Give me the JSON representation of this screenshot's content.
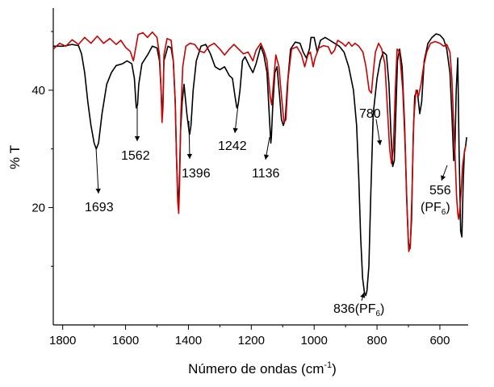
{
  "chart_data": {
    "type": "line",
    "xlabel": "Número de ondas (cm",
    "xlabel_sup": "-1",
    "xlabel_end": ")",
    "ylabel": "% T",
    "xlim": [
      1830,
      510
    ],
    "ylim": [
      0,
      54
    ],
    "x_reversed": true,
    "x_ticks": [
      1800,
      1600,
      1400,
      1200,
      1000,
      800,
      600
    ],
    "y_ticks": [
      20,
      40
    ],
    "grid": false,
    "legend": "none",
    "series": [
      {
        "color": "#000000",
        "points": [
          [
            1830,
            47.5
          ],
          [
            1800,
            47.5
          ],
          [
            1770,
            47.8
          ],
          [
            1750,
            47.6
          ],
          [
            1740,
            46.2
          ],
          [
            1730,
            43
          ],
          [
            1720,
            38
          ],
          [
            1710,
            34
          ],
          [
            1700,
            31
          ],
          [
            1693,
            30
          ],
          [
            1686,
            31
          ],
          [
            1675,
            36
          ],
          [
            1660,
            41
          ],
          [
            1645,
            43
          ],
          [
            1630,
            44.2
          ],
          [
            1610,
            44.5
          ],
          [
            1595,
            45
          ],
          [
            1580,
            44.5
          ],
          [
            1572,
            42
          ],
          [
            1566,
            37
          ],
          [
            1562,
            37.5
          ],
          [
            1558,
            41
          ],
          [
            1548,
            44.5
          ],
          [
            1530,
            46
          ],
          [
            1515,
            47.5
          ],
          [
            1500,
            47.2
          ],
          [
            1492,
            45
          ],
          [
            1487,
            40
          ],
          [
            1484,
            36
          ],
          [
            1481,
            38
          ],
          [
            1478,
            45
          ],
          [
            1465,
            47.5
          ],
          [
            1455,
            47.2
          ],
          [
            1448,
            45
          ],
          [
            1442,
            38
          ],
          [
            1438,
            29
          ],
          [
            1434,
            22
          ],
          [
            1432,
            20.5
          ],
          [
            1429,
            24
          ],
          [
            1425,
            33
          ],
          [
            1420,
            38
          ],
          [
            1414,
            41
          ],
          [
            1405,
            36
          ],
          [
            1398,
            33
          ],
          [
            1396,
            32.5
          ],
          [
            1392,
            34
          ],
          [
            1385,
            40
          ],
          [
            1375,
            45
          ],
          [
            1360,
            47.5
          ],
          [
            1345,
            47.8
          ],
          [
            1330,
            46.2
          ],
          [
            1315,
            44
          ],
          [
            1300,
            43.5
          ],
          [
            1285,
            44
          ],
          [
            1270,
            42.5
          ],
          [
            1260,
            42
          ],
          [
            1252,
            39
          ],
          [
            1246,
            37
          ],
          [
            1242,
            37.5
          ],
          [
            1236,
            40
          ],
          [
            1228,
            45
          ],
          [
            1220,
            45.7
          ],
          [
            1205,
            44
          ],
          [
            1195,
            43
          ],
          [
            1185,
            44.5
          ],
          [
            1170,
            47.5
          ],
          [
            1160,
            46
          ],
          [
            1150,
            43
          ],
          [
            1142,
            35
          ],
          [
            1138,
            31
          ],
          [
            1136,
            32
          ],
          [
            1132,
            37
          ],
          [
            1125,
            43
          ],
          [
            1118,
            44
          ],
          [
            1110,
            39
          ],
          [
            1104,
            35
          ],
          [
            1098,
            34
          ],
          [
            1092,
            35
          ],
          [
            1085,
            41
          ],
          [
            1075,
            47
          ],
          [
            1060,
            48.2
          ],
          [
            1045,
            48
          ],
          [
            1035,
            46.5
          ],
          [
            1025,
            45.5
          ],
          [
            1015,
            47
          ],
          [
            1010,
            49
          ],
          [
            1000,
            49
          ],
          [
            990,
            46.5
          ],
          [
            980,
            48.5
          ],
          [
            965,
            49
          ],
          [
            950,
            48.5
          ],
          [
            935,
            48
          ],
          [
            920,
            47.5
          ],
          [
            905,
            46.5
          ],
          [
            890,
            44
          ],
          [
            875,
            40
          ],
          [
            865,
            34
          ],
          [
            858,
            25
          ],
          [
            852,
            15
          ],
          [
            846,
            8
          ],
          [
            840,
            5.5
          ],
          [
            836,
            5
          ],
          [
            832,
            5.8
          ],
          [
            826,
            10
          ],
          [
            820,
            22
          ],
          [
            812,
            36
          ],
          [
            800,
            42
          ],
          [
            790,
            45
          ],
          [
            780,
            46.5
          ],
          [
            770,
            46
          ],
          [
            762,
            41
          ],
          [
            756,
            33
          ],
          [
            750,
            27
          ],
          [
            745,
            28
          ],
          [
            740,
            36
          ],
          [
            735,
            45
          ],
          [
            728,
            47
          ],
          [
            720,
            44
          ],
          [
            712,
            34
          ],
          [
            706,
            22
          ],
          [
            700,
            14
          ],
          [
            695,
            13
          ],
          [
            690,
            18
          ],
          [
            685,
            32
          ],
          [
            680,
            39
          ],
          [
            672,
            40
          ],
          [
            664,
            36
          ],
          [
            658,
            38
          ],
          [
            650,
            45
          ],
          [
            638,
            48
          ],
          [
            625,
            49
          ],
          [
            612,
            49.6
          ],
          [
            600,
            49.4
          ],
          [
            588,
            48.7
          ],
          [
            578,
            47
          ],
          [
            568,
            43
          ],
          [
            561,
            35
          ],
          [
            556,
            28
          ],
          [
            552,
            30
          ],
          [
            548,
            40
          ],
          [
            543,
            45.5
          ],
          [
            539,
            30
          ],
          [
            534,
            16
          ],
          [
            530,
            15
          ],
          [
            526,
            24
          ],
          [
            522,
            29.5
          ],
          [
            518,
            30.5
          ],
          [
            515,
            32
          ]
        ]
      },
      {
        "color": "#cc0000",
        "points": [
          [
            1830,
            47
          ],
          [
            1810,
            48
          ],
          [
            1790,
            47.5
          ],
          [
            1770,
            48.6
          ],
          [
            1750,
            47.8
          ],
          [
            1730,
            49
          ],
          [
            1710,
            48
          ],
          [
            1690,
            49.2
          ],
          [
            1670,
            48
          ],
          [
            1650,
            48.8
          ],
          [
            1630,
            47.8
          ],
          [
            1615,
            48.5
          ],
          [
            1600,
            47.3
          ],
          [
            1585,
            46.6
          ],
          [
            1575,
            45
          ],
          [
            1567,
            47.4
          ],
          [
            1560,
            49.5
          ],
          [
            1545,
            49.8
          ],
          [
            1530,
            49
          ],
          [
            1515,
            49.9
          ],
          [
            1500,
            49
          ],
          [
            1492,
            46
          ],
          [
            1487,
            40
          ],
          [
            1484,
            34.5
          ],
          [
            1481,
            37
          ],
          [
            1478,
            46
          ],
          [
            1468,
            48.8
          ],
          [
            1455,
            48.5
          ],
          [
            1448,
            45
          ],
          [
            1442,
            38
          ],
          [
            1438,
            29
          ],
          [
            1434,
            21
          ],
          [
            1431,
            19
          ],
          [
            1428,
            24
          ],
          [
            1424,
            36
          ],
          [
            1418,
            44
          ],
          [
            1408,
            47.5
          ],
          [
            1395,
            48
          ],
          [
            1380,
            47.8
          ],
          [
            1365,
            46.7
          ],
          [
            1350,
            46.4
          ],
          [
            1335,
            47.5
          ],
          [
            1318,
            48
          ],
          [
            1300,
            47
          ],
          [
            1285,
            46
          ],
          [
            1270,
            47
          ],
          [
            1255,
            47.8
          ],
          [
            1240,
            47
          ],
          [
            1225,
            46.2
          ],
          [
            1210,
            46.5
          ],
          [
            1195,
            45
          ],
          [
            1185,
            46.8
          ],
          [
            1170,
            48
          ],
          [
            1160,
            46.8
          ],
          [
            1150,
            45
          ],
          [
            1140,
            39
          ],
          [
            1135,
            37.5
          ],
          [
            1130,
            41
          ],
          [
            1122,
            46
          ],
          [
            1112,
            44
          ],
          [
            1104,
            39
          ],
          [
            1096,
            34.5
          ],
          [
            1090,
            35
          ],
          [
            1083,
            42
          ],
          [
            1072,
            47
          ],
          [
            1055,
            47.4
          ],
          [
            1040,
            46
          ],
          [
            1030,
            44
          ],
          [
            1020,
            46
          ],
          [
            1012,
            46.5
          ],
          [
            1003,
            44
          ],
          [
            997,
            45.5
          ],
          [
            985,
            47.2
          ],
          [
            970,
            47.6
          ],
          [
            955,
            47.4
          ],
          [
            945,
            46.2
          ],
          [
            935,
            46.8
          ],
          [
            925,
            48.5
          ],
          [
            910,
            48
          ],
          [
            900,
            47.5
          ],
          [
            890,
            48.2
          ],
          [
            880,
            47.5
          ],
          [
            870,
            48
          ],
          [
            858,
            47.5
          ],
          [
            845,
            46.5
          ],
          [
            835,
            44
          ],
          [
            825,
            40
          ],
          [
            818,
            39.5
          ],
          [
            812,
            43
          ],
          [
            805,
            46.5
          ],
          [
            795,
            48
          ],
          [
            785,
            47
          ],
          [
            775,
            44.5
          ],
          [
            768,
            38
          ],
          [
            760,
            30
          ],
          [
            754,
            27.5
          ],
          [
            748,
            30
          ],
          [
            742,
            40
          ],
          [
            736,
            47
          ],
          [
            728,
            46.5
          ],
          [
            718,
            40
          ],
          [
            710,
            30
          ],
          [
            704,
            19
          ],
          [
            699,
            12.5
          ],
          [
            694,
            13.5
          ],
          [
            689,
            22
          ],
          [
            683,
            35
          ],
          [
            676,
            40
          ],
          [
            668,
            39
          ],
          [
            660,
            41
          ],
          [
            652,
            44
          ],
          [
            642,
            46.5
          ],
          [
            630,
            48
          ],
          [
            615,
            48.3
          ],
          [
            600,
            48
          ],
          [
            588,
            47.5
          ],
          [
            578,
            47.8
          ],
          [
            568,
            46.5
          ],
          [
            562,
            42
          ],
          [
            556,
            34
          ],
          [
            551,
            28
          ],
          [
            547,
            22
          ],
          [
            543,
            19
          ],
          [
            540,
            18
          ],
          [
            536,
            20
          ],
          [
            532,
            23
          ],
          [
            528,
            27
          ],
          [
            523,
            29
          ],
          [
            518,
            30.5
          ]
        ]
      }
    ],
    "annotations": [
      {
        "label": "1693",
        "sub": ""
      },
      {
        "label": "1562",
        "sub": ""
      },
      {
        "label": "1396",
        "sub": ""
      },
      {
        "label": "1242",
        "sub": ""
      },
      {
        "label": "1136",
        "sub": ""
      },
      {
        "label": "780",
        "sub": ""
      },
      {
        "label": "836",
        "sub": "(PF",
        "sub_small": "6",
        "sub_end": ")"
      },
      {
        "label": "556",
        "sub": "(PF",
        "sub_small": "6",
        "sub_end": ")"
      }
    ]
  }
}
